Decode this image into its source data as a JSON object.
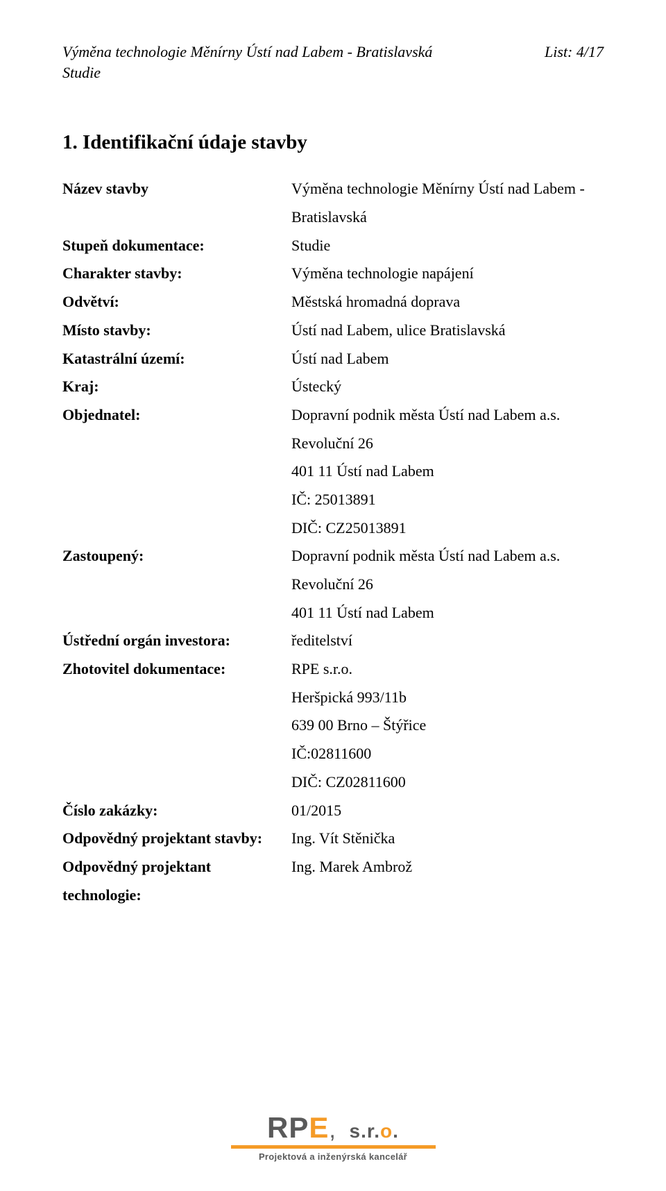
{
  "header": {
    "title_line1": "Výměna technologie Měnírny Ústí nad Labem - Bratislavská",
    "title_line2": "Studie",
    "page_indicator": "List: 4/17"
  },
  "section": {
    "title": "1. Identifikační údaje stavby"
  },
  "fields": [
    {
      "label": "Název stavby",
      "lines": [
        "Výměna technologie Měnírny Ústí nad Labem -",
        "Bratislavská"
      ]
    },
    {
      "label": "Stupeň dokumentace:",
      "lines": [
        "Studie"
      ]
    },
    {
      "label": "Charakter stavby:",
      "lines": [
        "Výměna technologie napájení"
      ]
    },
    {
      "label": "Odvětví:",
      "lines": [
        "Městská hromadná doprava"
      ]
    },
    {
      "label": "Místo stavby:",
      "lines": [
        "Ústí nad Labem, ulice Bratislavská"
      ]
    },
    {
      "label": "Katastrální území:",
      "lines": [
        "Ústí nad Labem"
      ]
    },
    {
      "label": "Kraj:",
      "lines": [
        "Ústecký"
      ]
    },
    {
      "label": "Objednatel:",
      "lines": [
        "Dopravní podnik města Ústí nad Labem a.s.",
        "Revoluční 26",
        "401 11 Ústí nad Labem",
        "IČ: 25013891",
        "DIČ: CZ25013891"
      ]
    },
    {
      "label": "Zastoupený:",
      "lines": [
        "Dopravní podnik města Ústí nad Labem a.s.",
        "Revoluční 26",
        "401 11 Ústí nad Labem"
      ]
    },
    {
      "label": "Ústřední orgán investora:",
      "lines": [
        "ředitelství"
      ]
    },
    {
      "label": "Zhotovitel dokumentace:",
      "lines": [
        "RPE s.r.o.",
        "Heršpická 993/11b",
        "639 00 Brno – Štýřice",
        "IČ:02811600",
        "DIČ: CZ02811600"
      ]
    },
    {
      "label": "Číslo zakázky:",
      "lines": [
        "01/2015"
      ]
    },
    {
      "label": "Odpovědný projektant stavby:",
      "lines": [
        "Ing. Vít Stěnička"
      ]
    },
    {
      "label": "Odpovědný projektant technologie:",
      "lines": [
        "Ing. Marek Ambrož"
      ]
    }
  ],
  "logo": {
    "letters": {
      "r": "R",
      "p": "P",
      "e": "E",
      "comma": ","
    },
    "sro": {
      "s": "s",
      "dot1": ".",
      "r": "r",
      "dot2": ".",
      "o": "o",
      "dot3": "."
    },
    "subtitle": "Projektová a inženýrská kancelář",
    "colors": {
      "dark": "#5a5a5a",
      "orange": "#f59b27",
      "background": "#ffffff",
      "text": "#000000"
    }
  }
}
